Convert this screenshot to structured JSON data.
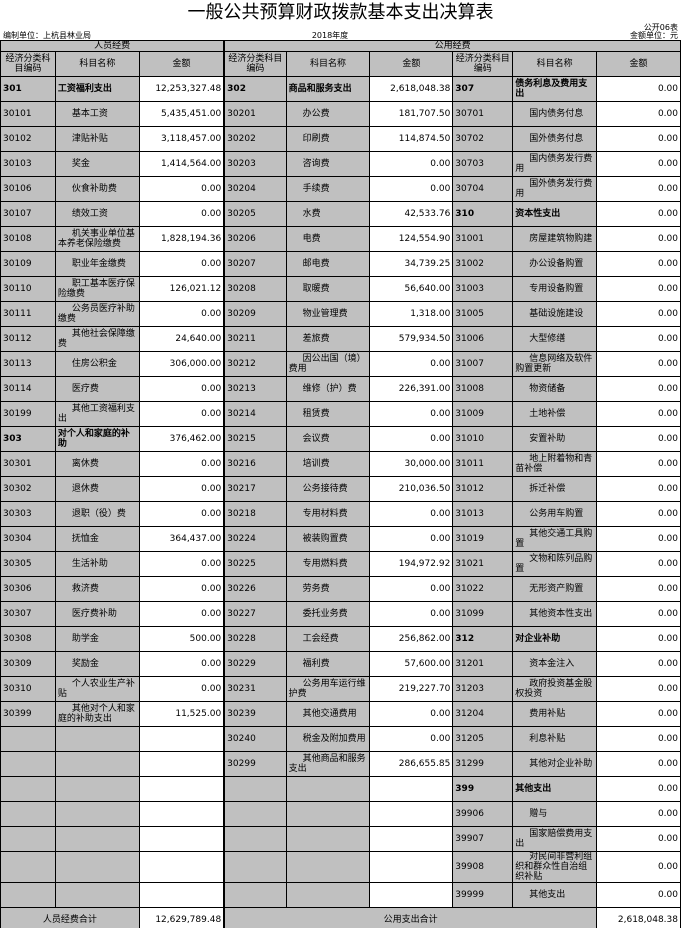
{
  "title": "一般公共预算财政拨款基本支出决算表",
  "form_no": "公开06表",
  "unit": "编制单位：上杭县林业局",
  "year": "2018年度",
  "currency": "金额单位：元",
  "sections": {
    "personnel": "人员经费",
    "public": "公用经费"
  },
  "col_headers": {
    "code": "经济分类科目编码",
    "name": "科目名称",
    "amount": "金额"
  },
  "left": [
    [
      "301",
      "工资福利支出",
      "12,253,327.48",
      1
    ],
    [
      "30101",
      "基本工资",
      "5,435,451.00",
      0
    ],
    [
      "30102",
      "津贴补贴",
      "3,118,457.00",
      0
    ],
    [
      "30103",
      "奖金",
      "1,414,564.00",
      0
    ],
    [
      "30106",
      "伙食补助费",
      "0.00",
      0
    ],
    [
      "30107",
      "绩效工资",
      "0.00",
      0
    ],
    [
      "30108",
      "机关事业单位基本养老保险缴费",
      "1,828,194.36",
      0
    ],
    [
      "30109",
      "职业年金缴费",
      "0.00",
      0
    ],
    [
      "30110",
      "职工基本医疗保险缴费",
      "126,021.12",
      0
    ],
    [
      "30111",
      "公务员医疗补助缴费",
      "0.00",
      0
    ],
    [
      "30112",
      "其他社会保障缴费",
      "24,640.00",
      0
    ],
    [
      "30113",
      "住房公积金",
      "306,000.00",
      0
    ],
    [
      "30114",
      "医疗费",
      "0.00",
      0
    ],
    [
      "30199",
      "其他工资福利支出",
      "0.00",
      0
    ],
    [
      "303",
      "对个人和家庭的补助",
      "376,462.00",
      1
    ],
    [
      "30301",
      "离休费",
      "0.00",
      0
    ],
    [
      "30302",
      "退休费",
      "0.00",
      0
    ],
    [
      "30303",
      "退职（役）费",
      "0.00",
      0
    ],
    [
      "30304",
      "抚恤金",
      "364,437.00",
      0
    ],
    [
      "30305",
      "生活补助",
      "0.00",
      0
    ],
    [
      "30306",
      "救济费",
      "0.00",
      0
    ],
    [
      "30307",
      "医疗费补助",
      "0.00",
      0
    ],
    [
      "30308",
      "助学金",
      "500.00",
      0
    ],
    [
      "30309",
      "奖励金",
      "0.00",
      0
    ],
    [
      "30310",
      "个人农业生产补贴",
      "0.00",
      0
    ],
    [
      "30399",
      "其他对个人和家庭的补助支出",
      "11,525.00",
      0
    ]
  ],
  "middle": [
    [
      "302",
      "商品和服务支出",
      "2,618,048.38",
      1
    ],
    [
      "30201",
      "办公费",
      "181,707.50",
      0
    ],
    [
      "30202",
      "印刷费",
      "114,874.50",
      0
    ],
    [
      "30203",
      "咨询费",
      "0.00",
      0
    ],
    [
      "30204",
      "手续费",
      "0.00",
      0
    ],
    [
      "30205",
      "水费",
      "42,533.76",
      0
    ],
    [
      "30206",
      "电费",
      "124,554.90",
      0
    ],
    [
      "30207",
      "邮电费",
      "34,739.25",
      0
    ],
    [
      "30208",
      "取暖费",
      "56,640.00",
      0
    ],
    [
      "30209",
      "物业管理费",
      "1,318.00",
      0
    ],
    [
      "30211",
      "差旅费",
      "579,934.50",
      0
    ],
    [
      "30212",
      "因公出国（境）费用",
      "0.00",
      0
    ],
    [
      "30213",
      "维修（护）费",
      "226,391.00",
      0
    ],
    [
      "30214",
      "租赁费",
      "0.00",
      0
    ],
    [
      "30215",
      "会议费",
      "0.00",
      0
    ],
    [
      "30216",
      "培训费",
      "30,000.00",
      0
    ],
    [
      "30217",
      "公务接待费",
      "210,036.50",
      0
    ],
    [
      "30218",
      "专用材料费",
      "0.00",
      0
    ],
    [
      "30224",
      "被装购置费",
      "0.00",
      0
    ],
    [
      "30225",
      "专用燃料费",
      "194,972.92",
      0
    ],
    [
      "30226",
      "劳务费",
      "0.00",
      0
    ],
    [
      "30227",
      "委托业务费",
      "0.00",
      0
    ],
    [
      "30228",
      "工会经费",
      "256,862.00",
      0
    ],
    [
      "30229",
      "福利费",
      "57,600.00",
      0
    ],
    [
      "30231",
      "公务用车运行维护费",
      "219,227.70",
      0
    ],
    [
      "30239",
      "其他交通费用",
      "0.00",
      0
    ],
    [
      "30240",
      "税金及附加费用",
      "0.00",
      0
    ],
    [
      "30299",
      "其他商品和服务支出",
      "286,655.85",
      0
    ]
  ],
  "right": [
    [
      "307",
      "债务利息及费用支出",
      "0.00",
      1
    ],
    [
      "30701",
      "国内债务付息",
      "0.00",
      0
    ],
    [
      "30702",
      "国外债务付息",
      "0.00",
      0
    ],
    [
      "30703",
      "国内债务发行费用",
      "0.00",
      0
    ],
    [
      "30704",
      "国外债务发行费用",
      "0.00",
      0
    ],
    [
      "310",
      "资本性支出",
      "0.00",
      1
    ],
    [
      "31001",
      "房屋建筑物购建",
      "0.00",
      0
    ],
    [
      "31002",
      "办公设备购置",
      "0.00",
      0
    ],
    [
      "31003",
      "专用设备购置",
      "0.00",
      0
    ],
    [
      "31005",
      "基础设施建设",
      "0.00",
      0
    ],
    [
      "31006",
      "大型修缮",
      "0.00",
      0
    ],
    [
      "31007",
      "信息网络及软件购置更新",
      "0.00",
      0
    ],
    [
      "31008",
      "物资储备",
      "0.00",
      0
    ],
    [
      "31009",
      "土地补偿",
      "0.00",
      0
    ],
    [
      "31010",
      "安置补助",
      "0.00",
      0
    ],
    [
      "31011",
      "地上附着物和青苗补偿",
      "0.00",
      0
    ],
    [
      "31012",
      "拆迁补偿",
      "0.00",
      0
    ],
    [
      "31013",
      "公务用车购置",
      "0.00",
      0
    ],
    [
      "31019",
      "其他交通工具购置",
      "0.00",
      0
    ],
    [
      "31021",
      "文物和陈列品购置",
      "0.00",
      0
    ],
    [
      "31022",
      "无形资产购置",
      "0.00",
      0
    ],
    [
      "31099",
      "其他资本性支出",
      "0.00",
      0
    ],
    [
      "312",
      "对企业补助",
      "0.00",
      1
    ],
    [
      "31201",
      "资本金注入",
      "0.00",
      0
    ],
    [
      "31203",
      "政府投资基金股权投资",
      "0.00",
      0
    ],
    [
      "31204",
      "费用补贴",
      "0.00",
      0
    ],
    [
      "31205",
      "利息补贴",
      "0.00",
      0
    ],
    [
      "31299",
      "其他对企业补助",
      "0.00",
      0
    ],
    [
      "399",
      "其他支出",
      "0.00",
      1
    ],
    [
      "39906",
      "赠与",
      "0.00",
      0
    ],
    [
      "39907",
      "国家赔偿费用支出",
      "0.00",
      0
    ],
    [
      "39908",
      "对民间非营利组织和群众性自治组织补贴",
      "0.00",
      0
    ],
    [
      "39999",
      "其他支出",
      "0.00",
      0
    ]
  ],
  "totals": {
    "personnel_label": "人员经费合计",
    "personnel_value": "12,629,789.48",
    "public_label": "公用支出合计",
    "public_value": "2,618,048.38"
  }
}
